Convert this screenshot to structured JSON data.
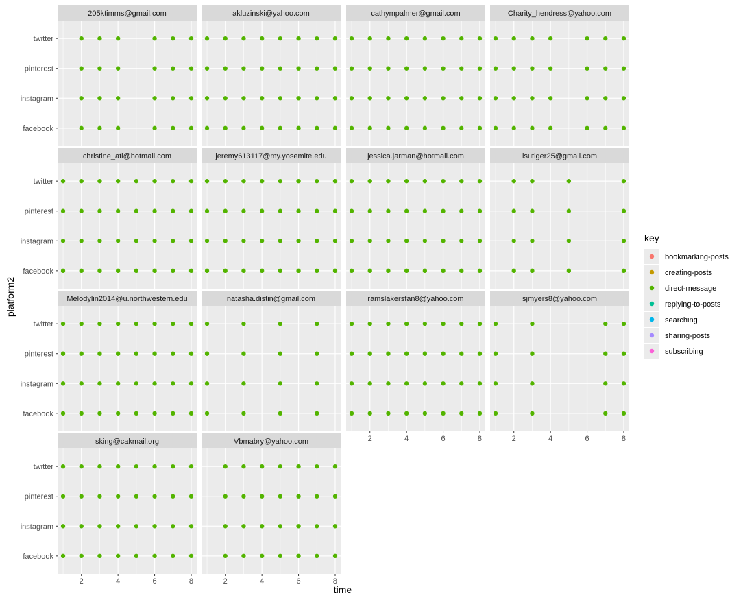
{
  "chart_data": {
    "type": "scatter",
    "facet_layout": "wrap",
    "xlabel": "time",
    "ylabel": "platform2",
    "xlim": [
      0.7,
      8.3
    ],
    "x_ticks": [
      2,
      4,
      6,
      8
    ],
    "y_categories": [
      "facebook",
      "instagram",
      "pinterest",
      "twitter"
    ],
    "legend": {
      "title": "key",
      "placement": "right",
      "entries": [
        {
          "label": "bookmarking-posts",
          "color": "#F8766D"
        },
        {
          "label": "creating-posts",
          "color": "#C49A00"
        },
        {
          "label": "direct-message",
          "color": "#53B400"
        },
        {
          "label": "replying-to-posts",
          "color": "#00C094"
        },
        {
          "label": "searching",
          "color": "#00B6EB"
        },
        {
          "label": "sharing-posts",
          "color": "#A58AFF"
        },
        {
          "label": "subscribing",
          "color": "#FB61D7"
        }
      ]
    },
    "point_key": "direct-message",
    "panels": [
      {
        "title": "205ktimms@gmail.com",
        "times": [
          2,
          3,
          4,
          6,
          7,
          8
        ]
      },
      {
        "title": "akluzinski@yahoo.com",
        "times": [
          1,
          2,
          3,
          4,
          5,
          6,
          7,
          8
        ]
      },
      {
        "title": "cathympalmer@gmail.com",
        "times": [
          1,
          2,
          3,
          4,
          5,
          6,
          7,
          8
        ]
      },
      {
        "title": "Charity_hendress@yahoo.com",
        "times": [
          1,
          2,
          3,
          4,
          6,
          7,
          8
        ]
      },
      {
        "title": "christine_atl@hotmail.com",
        "times": [
          1,
          2,
          3,
          4,
          5,
          6,
          7,
          8
        ]
      },
      {
        "title": "jeremy613117@my.yosemite.edu",
        "times": [
          1,
          2,
          3,
          4,
          5,
          6,
          7,
          8
        ]
      },
      {
        "title": "jessica.jarman@hotmail.com",
        "times": [
          1,
          2,
          3,
          4,
          5,
          6,
          7,
          8
        ]
      },
      {
        "title": "lsutiger25@gmail.com",
        "times": [
          2,
          3,
          5,
          8
        ]
      },
      {
        "title": "Melodylin2014@u.northwestern.edu",
        "times": [
          1,
          2,
          3,
          4,
          5,
          6,
          7,
          8
        ]
      },
      {
        "title": "natasha.distin@gmail.com",
        "times": [
          1,
          3,
          5,
          7
        ]
      },
      {
        "title": "ramslakersfan8@yahoo.com",
        "times": [
          1,
          2,
          3,
          4,
          5,
          6,
          7,
          8
        ]
      },
      {
        "title": "sjmyers8@yahoo.com",
        "times": [
          1,
          3,
          7,
          8
        ]
      },
      {
        "title": "sking@cakmail.org",
        "times": [
          1,
          2,
          3,
          4,
          5,
          6,
          7,
          8
        ]
      },
      {
        "title": "Vbmabry@yahoo.com",
        "times": [
          2,
          3,
          4,
          5,
          6,
          7,
          8
        ]
      }
    ]
  }
}
